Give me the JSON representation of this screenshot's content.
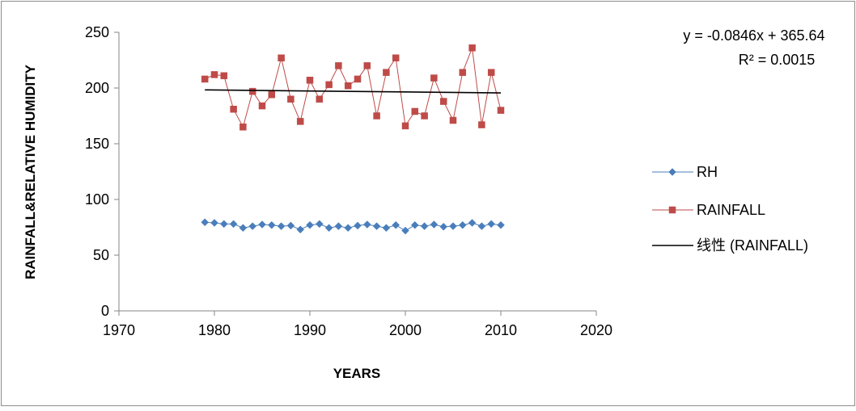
{
  "chart_data": {
    "type": "scatter",
    "xlabel": "YEARS",
    "ylabel": "RAINFALL&RELATIVE HUMIDITY",
    "xlim": [
      1970,
      2020
    ],
    "ylim": [
      0,
      250
    ],
    "xticks": [
      1970,
      1980,
      1990,
      2000,
      2010,
      2020
    ],
    "yticks": [
      0,
      50,
      100,
      150,
      200,
      250
    ],
    "grid": false,
    "legend_position": "right",
    "trendline_equation": "y = -0.0846x + 365.64",
    "trendline_r2": "R² = 0.0015",
    "x": [
      1979,
      1980,
      1981,
      1982,
      1983,
      1984,
      1985,
      1986,
      1987,
      1988,
      1989,
      1990,
      1991,
      1992,
      1993,
      1994,
      1995,
      1996,
      1997,
      1998,
      1999,
      2000,
      2001,
      2002,
      2003,
      2004,
      2005,
      2006,
      2007,
      2008,
      2009,
      2010
    ],
    "series": [
      {
        "name": "RH",
        "color": "#4a7ebb",
        "marker": "diamond",
        "values": [
          79.5,
          79,
          78,
          78,
          74.5,
          76,
          77.5,
          77,
          76,
          76.5,
          73,
          77,
          78,
          74.5,
          76,
          74.5,
          76.5,
          77.5,
          76,
          74.5,
          77,
          72,
          77,
          76,
          77.5,
          75.5,
          76,
          77,
          79,
          76,
          78,
          77
        ]
      },
      {
        "name": "RAINFALL",
        "color": "#be4b48",
        "marker": "square",
        "values": [
          208,
          212,
          211,
          181,
          165,
          197,
          184,
          194,
          227,
          190,
          170,
          207,
          190,
          203,
          220,
          202,
          208,
          220,
          175,
          214,
          227,
          166,
          179,
          175,
          209,
          188,
          171,
          214,
          236,
          167,
          214,
          180
        ]
      },
      {
        "name": "线性 (RAINFALL)",
        "color": "#000000",
        "type": "line",
        "x": [
          1979,
          2010
        ],
        "values": [
          198.3,
          195.6
        ]
      }
    ]
  }
}
